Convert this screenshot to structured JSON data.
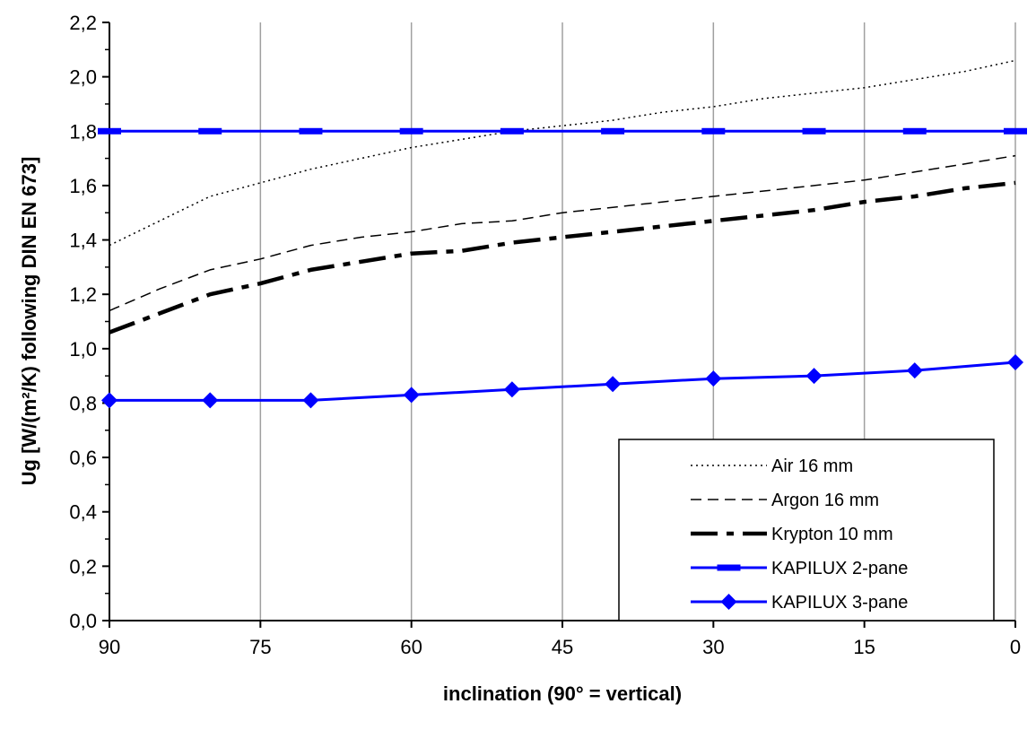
{
  "chart_data": {
    "type": "line",
    "xlabel": "inclination (90° = vertical)",
    "ylabel": "Ug [W/(m²/K) following DIN EN 673]",
    "xlim": [
      90,
      0
    ],
    "ylim": [
      0,
      2.2
    ],
    "x_ticks": [
      "90",
      "75",
      "60",
      "45",
      "30",
      "15",
      "0"
    ],
    "y_ticks": [
      "0,0",
      "0,2",
      "0,4",
      "0,6",
      "0,8",
      "1,0",
      "1,2",
      "1,4",
      "1,6",
      "1,8",
      "2,0",
      "2,2"
    ],
    "grid": true,
    "legend_position": "bottom-right",
    "series": [
      {
        "name": "Air 16 mm",
        "style": "dotted",
        "color": "#000000",
        "x": [
          90,
          85,
          80,
          75,
          70,
          65,
          60,
          55,
          50,
          45,
          40,
          35,
          30,
          25,
          20,
          15,
          10,
          5,
          0
        ],
        "y": [
          1.38,
          1.47,
          1.56,
          1.61,
          1.66,
          1.7,
          1.74,
          1.77,
          1.8,
          1.82,
          1.84,
          1.87,
          1.89,
          1.92,
          1.94,
          1.96,
          1.99,
          2.02,
          2.06
        ]
      },
      {
        "name": "Argon 16 mm",
        "style": "dashed",
        "color": "#000000",
        "x": [
          90,
          85,
          80,
          75,
          70,
          65,
          60,
          55,
          50,
          45,
          40,
          35,
          30,
          25,
          20,
          15,
          10,
          5,
          0
        ],
        "y": [
          1.14,
          1.22,
          1.29,
          1.33,
          1.38,
          1.41,
          1.43,
          1.46,
          1.47,
          1.5,
          1.52,
          1.54,
          1.56,
          1.58,
          1.6,
          1.62,
          1.65,
          1.68,
          1.71
        ]
      },
      {
        "name": "Krypton 10 mm",
        "style": "dash-dot",
        "color": "#000000",
        "x": [
          90,
          85,
          80,
          75,
          70,
          65,
          60,
          55,
          50,
          45,
          40,
          35,
          30,
          25,
          20,
          15,
          10,
          5,
          0
        ],
        "y": [
          1.06,
          1.13,
          1.2,
          1.24,
          1.29,
          1.32,
          1.35,
          1.36,
          1.39,
          1.41,
          1.43,
          1.45,
          1.47,
          1.49,
          1.51,
          1.54,
          1.56,
          1.59,
          1.61
        ]
      },
      {
        "name": "KAPILUX 2-pane",
        "style": "solid-dash-markers",
        "color": "#0000ff",
        "x": [
          90,
          80,
          70,
          60,
          50,
          40,
          30,
          20,
          10,
          0
        ],
        "y": [
          1.8,
          1.8,
          1.8,
          1.8,
          1.8,
          1.8,
          1.8,
          1.8,
          1.8,
          1.8
        ]
      },
      {
        "name": "KAPILUX 3-pane",
        "style": "solid-diamond-markers",
        "color": "#0000ff",
        "x": [
          90,
          80,
          70,
          60,
          50,
          40,
          30,
          20,
          10,
          0
        ],
        "y": [
          0.81,
          0.81,
          0.81,
          0.83,
          0.85,
          0.87,
          0.89,
          0.9,
          0.92,
          0.95
        ]
      }
    ]
  }
}
